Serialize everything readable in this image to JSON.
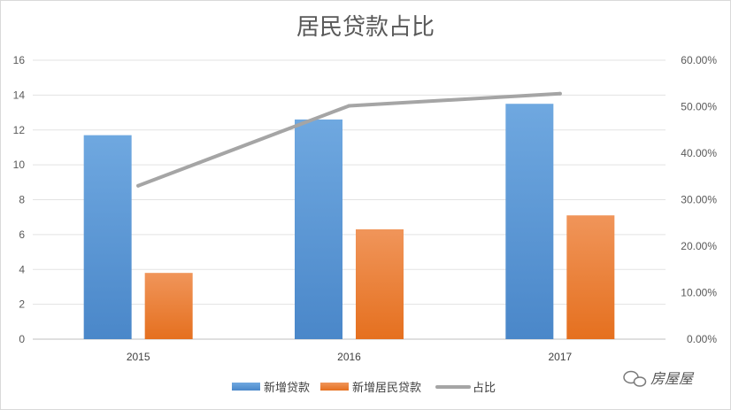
{
  "chart_data": {
    "type": "bar",
    "title": "居民贷款占比",
    "categories": [
      "2015",
      "2016",
      "2017"
    ],
    "series": [
      {
        "name": "新增贷款",
        "type": "bar",
        "axis": "left",
        "values": [
          11.7,
          12.6,
          13.5
        ],
        "color": "#5b9bd5"
      },
      {
        "name": "新增居民贷款",
        "type": "bar",
        "axis": "left",
        "values": [
          3.8,
          6.3,
          7.1
        ],
        "color": "#ed7d31"
      },
      {
        "name": "占比",
        "type": "line",
        "axis": "right",
        "values": [
          0.33,
          0.502,
          0.528
        ],
        "color": "#a5a5a5"
      }
    ],
    "y_left": {
      "min": 0,
      "max": 16,
      "ticks": [
        0,
        2,
        4,
        6,
        8,
        10,
        12,
        14,
        16
      ]
    },
    "y_right": {
      "min": 0,
      "max": 0.6,
      "tick_labels": [
        "0.00%",
        "10.00%",
        "20.00%",
        "30.00%",
        "40.00%",
        "50.00%",
        "60.00%"
      ]
    },
    "grid": true,
    "legend": "bottom"
  },
  "watermark": {
    "text": "房屋屋",
    "icon": "wechat-icon"
  }
}
